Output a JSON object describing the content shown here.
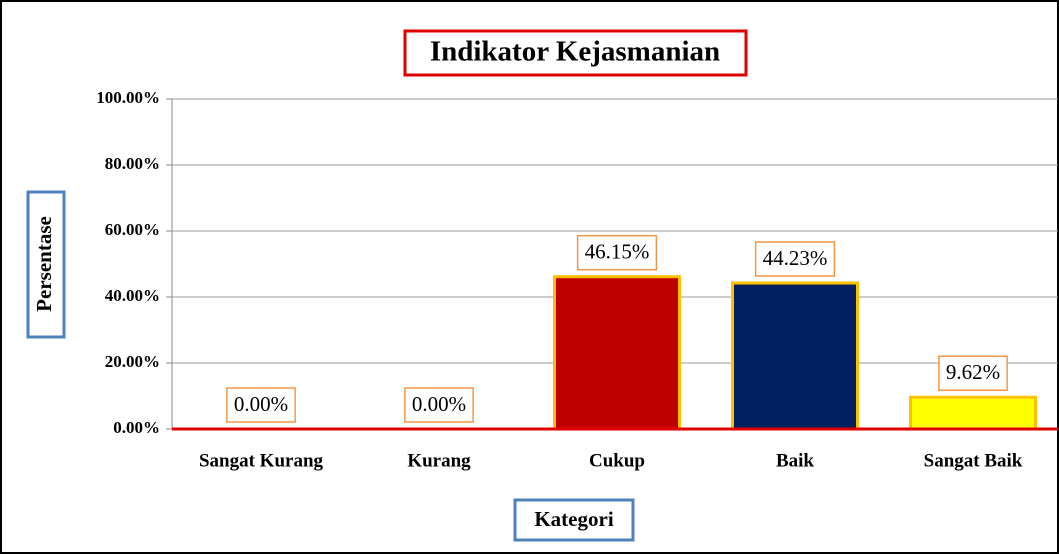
{
  "chart_data": {
    "type": "bar",
    "title": "Indikator Kejasmanian",
    "xlabel": "Kategori",
    "ylabel": "Persentase",
    "categories": [
      "Sangat Kurang",
      "Kurang",
      "Cukup",
      "Baik",
      "Sangat Baik"
    ],
    "values": [
      0,
      0,
      46.15,
      44.23,
      9.62
    ],
    "value_labels": [
      "0.00%",
      "0.00%",
      "46.15%",
      "44.23%",
      "9.62%"
    ],
    "colors": [
      "#c00000",
      "#c00000",
      "#c00000",
      "#002060",
      "#ffff00"
    ],
    "ylim": [
      0,
      100
    ],
    "yticks": [
      {
        "value": 0,
        "label": "0.00%"
      },
      {
        "value": 20,
        "label": "20.00%"
      },
      {
        "value": 40,
        "label": "40.00%"
      },
      {
        "value": 60,
        "label": "60.00%"
      },
      {
        "value": 80,
        "label": "80.00%"
      },
      {
        "value": 100,
        "label": "100.00%"
      }
    ],
    "grid": true
  }
}
